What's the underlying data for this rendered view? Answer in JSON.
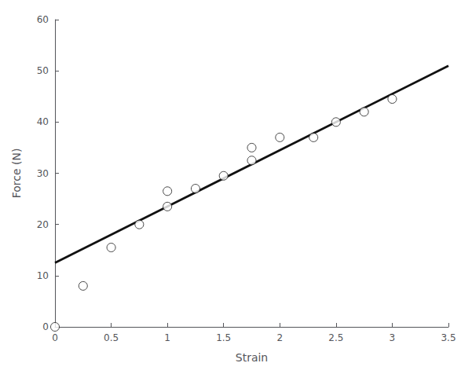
{
  "chart_data": {
    "type": "scatter",
    "xlabel": "Strain",
    "ylabel": "Force (N)",
    "xlim": [
      0,
      3.5
    ],
    "ylim": [
      0,
      60
    ],
    "xticks": [
      0,
      0.5,
      1,
      1.5,
      2,
      2.5,
      3,
      3.5
    ],
    "yticks": [
      0,
      10,
      20,
      30,
      40,
      50,
      60
    ],
    "grid": false,
    "series": [
      {
        "type": "line",
        "color": "#111111",
        "line_style": "solid",
        "x": [
          0.0,
          3.5
        ],
        "values": [
          12.5,
          51.0
        ]
      },
      {
        "type": "scatter",
        "color": "#1a1a1a",
        "marker": "open circle",
        "x": [
          0.0,
          0.25,
          0.5,
          0.75,
          1.0,
          1.0,
          1.25,
          1.5,
          1.75,
          1.75,
          2.0,
          2.3,
          2.5,
          2.75,
          3.0
        ],
        "values": [
          0.0,
          8.0,
          15.5,
          20.0,
          23.5,
          26.5,
          27.0,
          29.5,
          32.5,
          35.0,
          37.0,
          37.0,
          40.0,
          42.0,
          44.5
        ]
      }
    ]
  }
}
